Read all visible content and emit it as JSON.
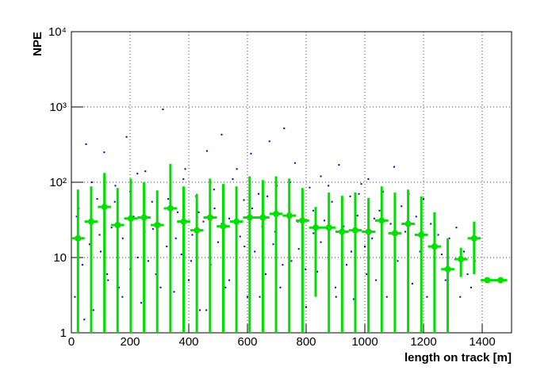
{
  "chart_data": {
    "type": "scatter",
    "x_label": "length on track [m]",
    "y_label": "NPE",
    "xlim": [
      0,
      1500
    ],
    "ylim": [
      1,
      10000
    ],
    "xticks": [
      0,
      200,
      400,
      600,
      800,
      1000,
      1200,
      1400
    ],
    "yticks": [
      1,
      10,
      {
        "value": 100,
        "label": "10²"
      },
      {
        "value": 1000,
        "label": "10³"
      },
      {
        "value": 10000,
        "label": "10⁴"
      }
    ],
    "log_y": true,
    "grid": true,
    "series": [
      {
        "type": "scatter",
        "color": "#0000cc",
        "x": [
          12,
          25,
          38,
          50,
          62,
          75,
          88,
          100,
          112,
          125,
          137,
          150,
          162,
          175,
          188,
          200,
          212,
          225,
          238,
          250,
          262,
          275,
          288,
          300,
          312,
          325,
          338,
          350,
          362,
          375,
          388,
          400,
          412,
          425,
          438,
          450,
          462,
          475,
          488,
          500,
          512,
          525,
          538,
          550,
          562,
          575,
          588,
          600,
          612,
          625,
          638,
          650,
          662,
          675,
          688,
          700,
          712,
          725,
          738,
          750,
          762,
          775,
          788,
          800,
          812,
          825,
          838,
          850,
          862,
          875,
          888,
          900,
          912,
          925,
          938,
          950,
          962,
          975,
          988,
          1000,
          1012,
          1025,
          1038,
          1050,
          1062,
          1075,
          1088,
          1100,
          1112,
          1125,
          1138,
          1150,
          1162,
          1175,
          1188,
          1200,
          1212,
          1225,
          1238,
          1250,
          1262,
          1275,
          1288,
          1300,
          1312,
          1325,
          1338,
          1350,
          1362,
          1375,
          18,
          44,
          70,
          96,
          122,
          148,
          174,
          200,
          226,
          252,
          278,
          304,
          330,
          356,
          382,
          408,
          434,
          460,
          486,
          512,
          538,
          564,
          590,
          616,
          642,
          668,
          694,
          720,
          746,
          772,
          798,
          824,
          850,
          876,
          902,
          928,
          954,
          980,
          1006,
          1032
        ],
        "values": [
          3,
          45,
          8,
          320,
          15,
          2,
          60,
          12,
          250,
          5,
          25,
          90,
          4,
          18,
          400,
          7,
          35,
          130,
          2.5,
          22,
          9,
          55,
          6,
          28,
          930,
          14,
          75,
          3.5,
          40,
          11,
          150,
          5,
          20,
          65,
          2,
          30,
          260,
          8,
          45,
          16,
          430,
          4,
          33,
          110,
          7,
          19,
          58,
          3,
          240,
          12,
          70,
          26,
          6,
          350,
          15,
          90,
          4,
          520,
          38,
          9,
          180,
          13,
          48,
          2.2,
          85,
          21,
          6.5,
          120,
          31,
          10,
          55,
          4,
          170,
          24,
          8,
          65,
          2.8,
          36,
          95,
          14,
          110,
          18,
          5,
          42,
          75,
          3,
          28,
          160,
          9,
          48,
          22,
          70,
          4.5,
          35,
          12,
          60,
          3,
          28,
          8,
          20,
          11,
          5,
          18,
          7,
          25,
          3,
          12,
          6,
          4,
          9,
          35,
          1.5,
          100,
          20,
          6,
          55,
          3,
          75,
          10,
          140,
          24,
          4,
          60,
          18,
          110,
          9,
          40,
          2,
          80,
          28,
          5,
          150,
          14,
          45,
          3,
          65,
          22,
          8,
          100,
          30,
          7,
          42,
          16,
          90,
          3,
          26,
          12,
          70,
          6,
          33
        ]
      },
      {
        "type": "profile",
        "color": "#00e000",
        "x": [
          22.5,
          67.5,
          112.5,
          157.5,
          202.5,
          247.5,
          292.5,
          337.5,
          382.5,
          427.5,
          472.5,
          517.5,
          562.5,
          607.5,
          652.5,
          697.5,
          742.5,
          787.5,
          832.5,
          877.5,
          922.5,
          967.5,
          1012.5,
          1057.5,
          1102.5,
          1147.5,
          1192.5,
          1237.5,
          1282.5,
          1327.5,
          1372.5,
          1417.5,
          1462.5
        ],
        "values": [
          18,
          30,
          47,
          27,
          33,
          34,
          27,
          45,
          30,
          23,
          34,
          26,
          30,
          34,
          34,
          38,
          36,
          31,
          25,
          25,
          22,
          23,
          22,
          31,
          21,
          28,
          20,
          14,
          7,
          9.5,
          18,
          5,
          5
        ],
        "errors": [
          62,
          58,
          86,
          57,
          79,
          66,
          51,
          130,
          58,
          47,
          78,
          69,
          58,
          86,
          73,
          82,
          76,
          53,
          22,
          48,
          44,
          50,
          40,
          57,
          52,
          52,
          45,
          26,
          11,
          4,
          12,
          0,
          0
        ]
      }
    ]
  }
}
